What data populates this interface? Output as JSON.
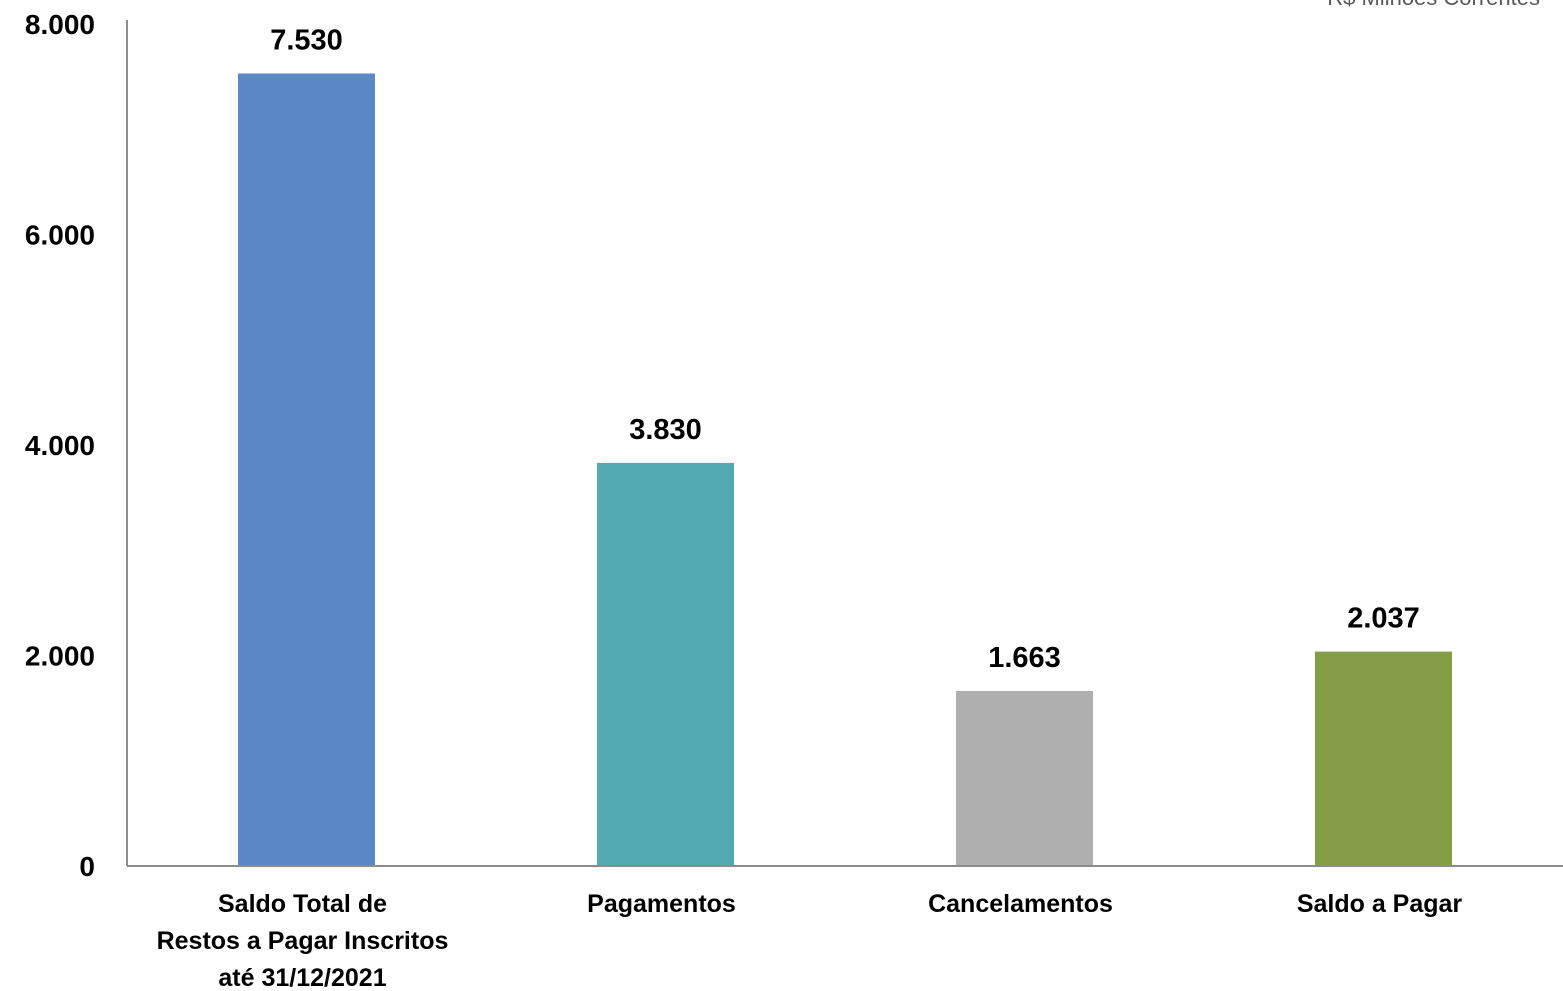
{
  "chart_data": {
    "type": "bar",
    "categories": [
      [
        "Saldo Total de",
        "Restos a Pagar Inscritos",
        "até 31/12/2021"
      ],
      [
        "Pagamentos"
      ],
      [
        "Cancelamentos"
      ],
      [
        "Saldo a Pagar"
      ]
    ],
    "values": [
      7530,
      3830,
      1663,
      2037
    ],
    "value_labels": [
      "7.530",
      "3.830",
      "1.663",
      "2.037"
    ],
    "colors": [
      "#5b89c5",
      "#52a9b1",
      "#afafaf",
      "#849e48"
    ],
    "unit_note": "R$ Milhões Correntes",
    "ylim": [
      0,
      8000
    ],
    "yticks": [
      0,
      2000,
      4000,
      6000,
      8000
    ],
    "ytick_labels": [
      "0",
      "2.000",
      "4.000",
      "6.000",
      "8.000"
    ],
    "title": "",
    "xlabel": "",
    "ylabel": "",
    "grid": false,
    "legend": "none"
  }
}
